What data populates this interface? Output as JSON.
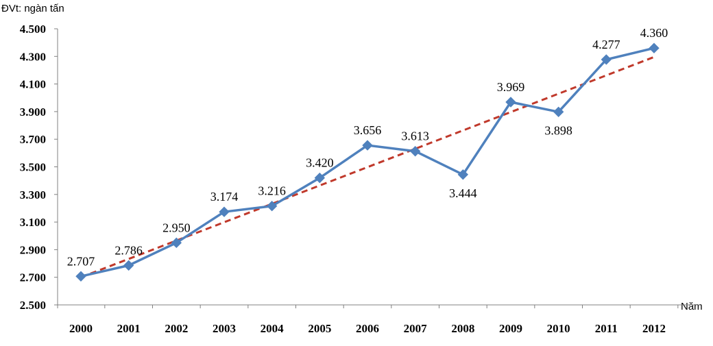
{
  "chart_data": {
    "type": "line",
    "unit_label": "ĐVt: ngàn tấn",
    "xlabel": "Năm",
    "ylabel": "",
    "title": "",
    "categories": [
      "2000",
      "2001",
      "2002",
      "2003",
      "2004",
      "2005",
      "2006",
      "2007",
      "2008",
      "2009",
      "2010",
      "2011",
      "2012"
    ],
    "yticks": [
      "2.500",
      "2.700",
      "2.900",
      "3.100",
      "3.300",
      "3.500",
      "3.700",
      "3.900",
      "4.100",
      "4.300",
      "4.500"
    ],
    "ylim": [
      2500,
      4500
    ],
    "series": [
      {
        "values": [
          2707,
          2786,
          2950,
          3174,
          3216,
          3420,
          3656,
          3613,
          3444,
          3969,
          3898,
          4277,
          4360
        ],
        "labels": [
          "2.707",
          "2.786",
          "2.950",
          "3.174",
          "3.216",
          "3.420",
          "3.656",
          "3.613",
          "3.444",
          "3.969",
          "3.898",
          "4.277",
          "4.360"
        ],
        "color": "#4f81bd",
        "marker": "diamond"
      }
    ],
    "trendline": {
      "type": "linear",
      "color": "#c0392b",
      "style": "dashed"
    },
    "grid": false,
    "legend": "none"
  }
}
